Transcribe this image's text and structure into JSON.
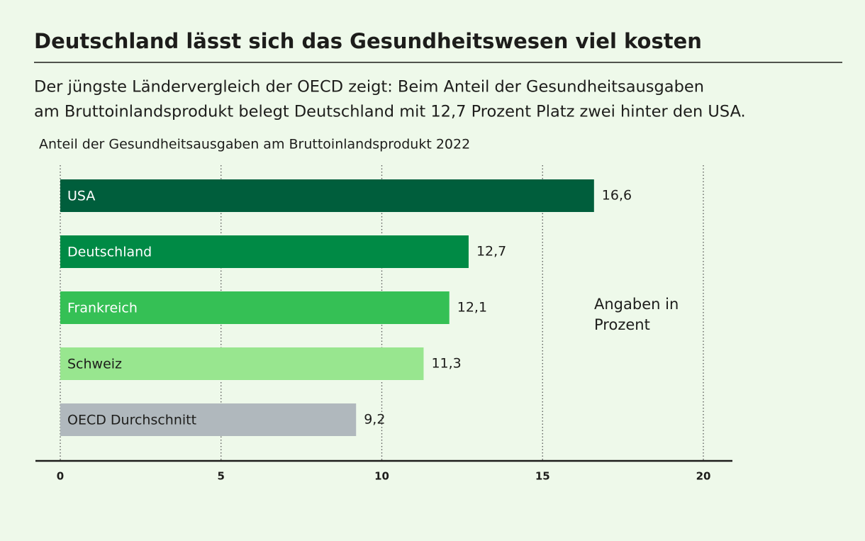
{
  "chart_data": {
    "type": "hbar",
    "title": "Deutschland lässt sich das Gesundheitswesen viel kosten",
    "subtitle": [
      "Der jüngste Ländervergleich der OECD zeigt: Beim Anteil der Gesundheitsausgaben",
      "am Bruttoinlandsprodukt belegt Deutschland mit 12,7 Prozent Platz zwei hinter den USA."
    ],
    "chart_title": "Anteil der Gesundheitsausgaben am Bruttoinlandsprodukt 2022",
    "annotation": [
      "Angaben in",
      "Prozent"
    ],
    "categories": [
      "USA",
      "Deutschland",
      "Frankreich",
      "Schweiz",
      "OECD Durchschnitt"
    ],
    "values": [
      16.6,
      12.7,
      12.1,
      11.3,
      9.2
    ],
    "value_labels": [
      "16,6",
      "12,7",
      "12,1",
      "11,3",
      "9,2"
    ],
    "colors": [
      "#005e3c",
      "#008a45",
      "#35c055",
      "#98e68f",
      "#b0b8bd"
    ],
    "xlim": [
      0,
      20
    ],
    "xticks": [
      0,
      5,
      10,
      15,
      20
    ],
    "grid": true
  }
}
